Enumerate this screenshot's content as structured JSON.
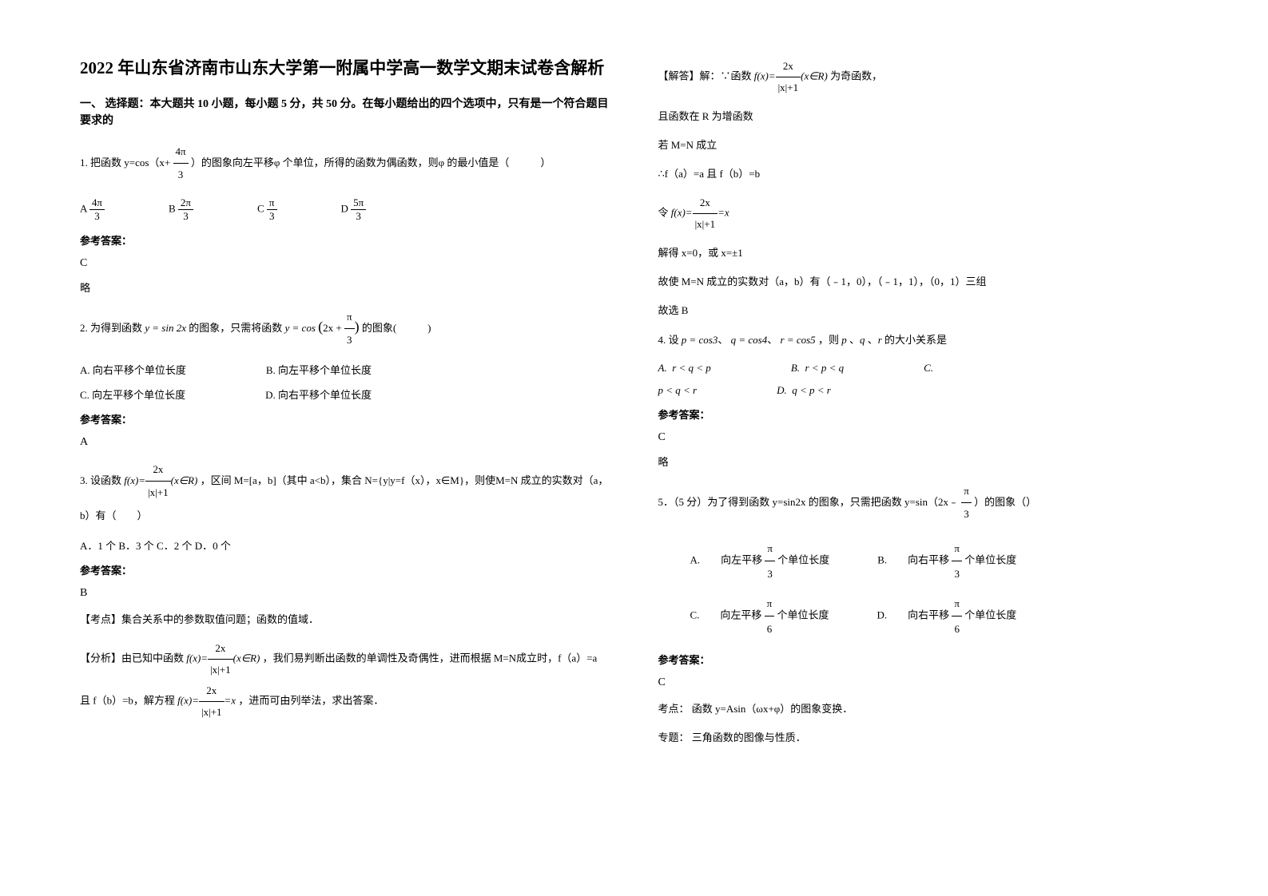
{
  "title": "2022 年山东省济南市山东大学第一附属中学高一数学文期末试卷含解析",
  "section1": "一、 选择题：本大题共 10 小题，每小题 5 分，共 50 分。在每小题给出的四个选项中，只有是一个符合题目要求的",
  "q1": {
    "stem_prefix": "1. 把函数 y=cos（x+ ",
    "frac_num": "4π",
    "frac_den": "3",
    "stem_suffix": " ）的图象向左平移φ 个单位，所得的函数为偶函数，则φ 的最小值是（　　　）",
    "optA_num": "4π",
    "optA_den": "3",
    "optB_num": "2π",
    "optB_den": "3",
    "optC_num": "π",
    "optC_den": "3",
    "optD_num": "5π",
    "optD_den": "3",
    "answer_label": "参考答案：",
    "answer": "C",
    "brief": "略"
  },
  "q2": {
    "stem_prefix": "2. 为得到函数 ",
    "fn1": "y = sin 2x",
    "stem_mid": " 的图象，只需将函数 ",
    "fn2_pre": "y = cos",
    "fn2_inner": "(2x + π/3)",
    "stem_suffix": " 的图象(　　　)",
    "optA": "A.  向右平移个单位长度",
    "optB": "B.  向左平移个单位长度",
    "optC": "C.  向左平移个单位长度",
    "optD": "D.  向右平移个单位长度",
    "answer_label": "参考答案：",
    "answer": "A"
  },
  "q3": {
    "stem_prefix": "3. 设函数 ",
    "fn_pre": "f(x)=",
    "fn_num": "2x",
    "fn_den": "|x|+1",
    "fn_suf": "(x∈R)",
    "stem_mid": "，区间 M=[a，b]（其中 a<b），集合 N={y|y=f（x），x∈M}，则使M=N 成立的实数对（a，b）有（　　）",
    "opts": "A．1 个 B．3 个 C．2 个 D．0 个",
    "answer_label": "参考答案：",
    "answer": "B",
    "kaodian": "【考点】集合关系中的参数取值问题；函数的值域．",
    "fenxi_pre": "【分析】由已知中函数 ",
    "fenxi_mid": "，我们易判断出函数的单调性及奇偶性，进而根据 M=N成立时，f（a）=a 且 f（b）=b，解方程 ",
    "fenxi_eq_pre": "f(x)=",
    "fenxi_eq_num": "2x",
    "fenxi_eq_den": "|x|+1",
    "fenxi_eq_suf": "=x",
    "fenxi_end": "，进而可由列举法，求出答案．",
    "jieda_pre": "【解答】解：∵函数 ",
    "jieda_suf": " 为奇函数，",
    "line2": "且函数在 R 为增函数",
    "line3": "若 M=N 成立",
    "line4": "∴f（a）=a 且 f（b）=b",
    "line5_pre": "令 ",
    "line6": "解得 x=0，或 x=±1",
    "line7": "故使 M=N 成立的实数对（a，b）有（﹣1，0），（﹣1，1），（0，1）三组",
    "line8": "故选 B"
  },
  "q4": {
    "stem_pre": "4. 设 ",
    "p": "p = cos3",
    "q": "q = cos4",
    "r": "r = cos5",
    "stem_mid": "，则 ",
    "stem_suf": " 的大小关系是",
    "optA": "r < q < p",
    "optB": "r < p < q",
    "optC": "p < q < r",
    "optD": "q < p < r",
    "answer_label": "参考答案：",
    "answer": "C",
    "brief": "略"
  },
  "q5": {
    "stem_pre": "5．（5 分）为了得到函数 y=sin2x 的图象，只需把函数 y=sin（2x﹣",
    "frac_num": "π",
    "frac_den": "3",
    "stem_suf": "）的图象（）",
    "optA_pre": "A.　　向左平移 ",
    "optA_num": "π",
    "optA_den": "3",
    "optA_suf": " 个单位长度",
    "optB_pre": "B.　　向右平移 ",
    "optB_num": "π",
    "optB_den": "3",
    "optB_suf": " 个单位长度",
    "optC_pre": "C.　　向左平移 ",
    "optC_num": "π",
    "optC_den": "6",
    "optC_suf": " 个单位长度",
    "optD_pre": "D.　　向右平移 ",
    "optD_num": "π",
    "optD_den": "6",
    "optD_suf": " 个单位长度",
    "answer_label": "参考答案：",
    "answer": "C",
    "kaodian": "考点：  函数 y=Asin（ωx+φ）的图象变换．",
    "zhuanti": "专题：  三角函数的图像与性质．"
  }
}
